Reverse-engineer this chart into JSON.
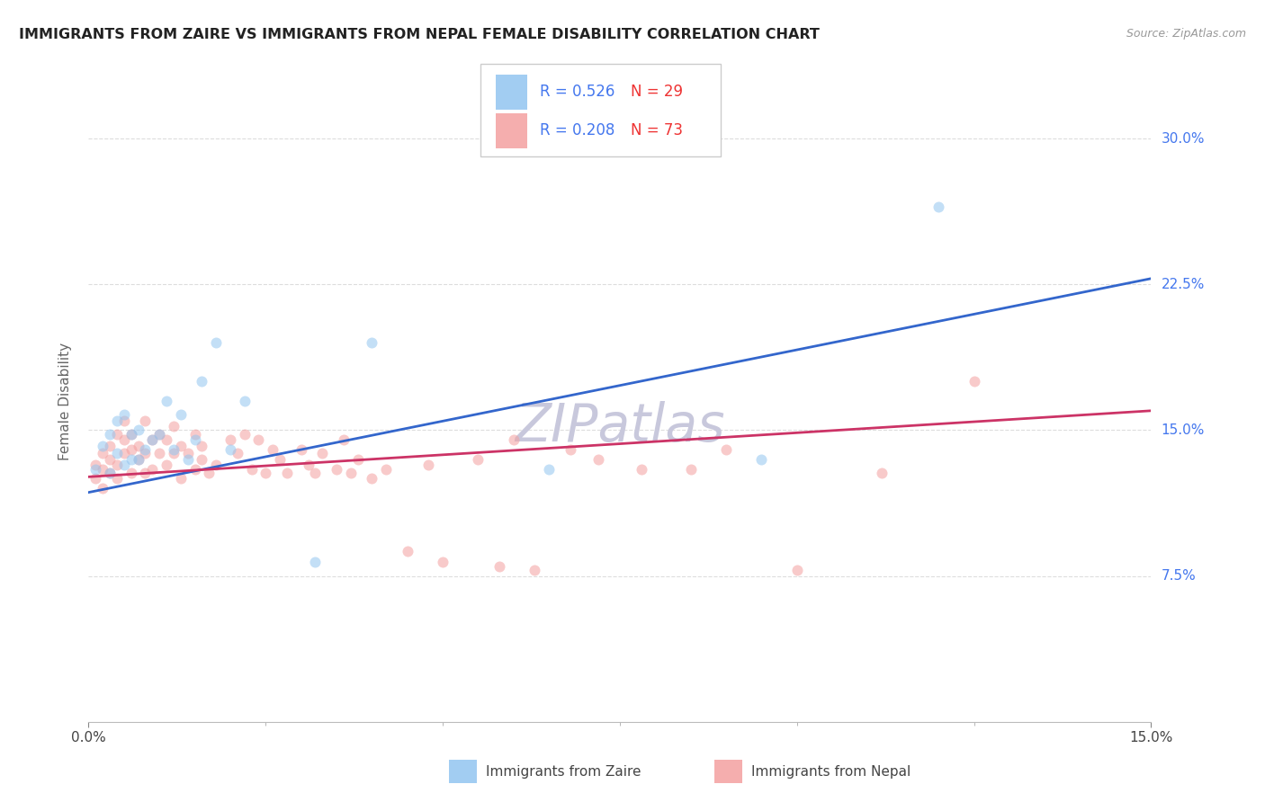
{
  "title": "IMMIGRANTS FROM ZAIRE VS IMMIGRANTS FROM NEPAL FEMALE DISABILITY CORRELATION CHART",
  "source": "Source: ZipAtlas.com",
  "ylabel": "Female Disability",
  "ytick_labels": [
    "7.5%",
    "15.0%",
    "22.5%",
    "30.0%"
  ],
  "ytick_values": [
    0.075,
    0.15,
    0.225,
    0.3
  ],
  "xlim": [
    0.0,
    0.15
  ],
  "ylim": [
    0.0,
    0.33
  ],
  "zaire_color": "#92C5F0",
  "nepal_color": "#F4A0A0",
  "zaire_line_color": "#3366CC",
  "nepal_line_color": "#CC3366",
  "legend_r_zaire": "R = 0.526",
  "legend_n_zaire": "N = 29",
  "legend_r_nepal": "R = 0.208",
  "legend_n_nepal": "N = 73",
  "r_color": "#4477EE",
  "n_color": "#EE3333",
  "zaire_x": [
    0.001,
    0.002,
    0.003,
    0.003,
    0.004,
    0.004,
    0.005,
    0.005,
    0.006,
    0.006,
    0.007,
    0.007,
    0.008,
    0.009,
    0.01,
    0.011,
    0.012,
    0.013,
    0.014,
    0.015,
    0.016,
    0.018,
    0.02,
    0.022,
    0.032,
    0.04,
    0.065,
    0.095,
    0.12
  ],
  "zaire_y": [
    0.13,
    0.142,
    0.128,
    0.148,
    0.138,
    0.155,
    0.132,
    0.158,
    0.135,
    0.148,
    0.135,
    0.15,
    0.14,
    0.145,
    0.148,
    0.165,
    0.14,
    0.158,
    0.135,
    0.145,
    0.175,
    0.195,
    0.14,
    0.165,
    0.082,
    0.195,
    0.13,
    0.135,
    0.265
  ],
  "nepal_x": [
    0.001,
    0.001,
    0.002,
    0.002,
    0.002,
    0.003,
    0.003,
    0.003,
    0.004,
    0.004,
    0.004,
    0.005,
    0.005,
    0.005,
    0.006,
    0.006,
    0.006,
    0.007,
    0.007,
    0.008,
    0.008,
    0.008,
    0.009,
    0.009,
    0.01,
    0.01,
    0.011,
    0.011,
    0.012,
    0.012,
    0.013,
    0.013,
    0.014,
    0.015,
    0.015,
    0.016,
    0.016,
    0.017,
    0.018,
    0.02,
    0.021,
    0.022,
    0.023,
    0.024,
    0.025,
    0.026,
    0.027,
    0.028,
    0.03,
    0.031,
    0.032,
    0.033,
    0.035,
    0.036,
    0.037,
    0.038,
    0.04,
    0.042,
    0.045,
    0.048,
    0.05,
    0.055,
    0.058,
    0.06,
    0.063,
    0.068,
    0.072,
    0.078,
    0.085,
    0.09,
    0.1,
    0.112,
    0.125
  ],
  "nepal_y": [
    0.132,
    0.125,
    0.12,
    0.13,
    0.138,
    0.128,
    0.135,
    0.142,
    0.125,
    0.132,
    0.148,
    0.138,
    0.145,
    0.155,
    0.128,
    0.14,
    0.148,
    0.135,
    0.142,
    0.128,
    0.138,
    0.155,
    0.13,
    0.145,
    0.138,
    0.148,
    0.132,
    0.145,
    0.138,
    0.152,
    0.125,
    0.142,
    0.138,
    0.13,
    0.148,
    0.135,
    0.142,
    0.128,
    0.132,
    0.145,
    0.138,
    0.148,
    0.13,
    0.145,
    0.128,
    0.14,
    0.135,
    0.128,
    0.14,
    0.132,
    0.128,
    0.138,
    0.13,
    0.145,
    0.128,
    0.135,
    0.125,
    0.13,
    0.088,
    0.132,
    0.082,
    0.135,
    0.08,
    0.145,
    0.078,
    0.14,
    0.135,
    0.13,
    0.13,
    0.14,
    0.078,
    0.128,
    0.175
  ],
  "marker_size": 75,
  "marker_alpha": 0.55,
  "watermark_text": "ZIPatlas",
  "watermark_color": "#C8C8DC",
  "background_color": "#FFFFFF",
  "grid_color": "#DDDDDD",
  "zaire_regression_x0": 0.0,
  "zaire_regression_y0": 0.118,
  "zaire_regression_x1": 0.15,
  "zaire_regression_y1": 0.228,
  "nepal_regression_x0": 0.0,
  "nepal_regression_y0": 0.126,
  "nepal_regression_x1": 0.15,
  "nepal_regression_y1": 0.16
}
